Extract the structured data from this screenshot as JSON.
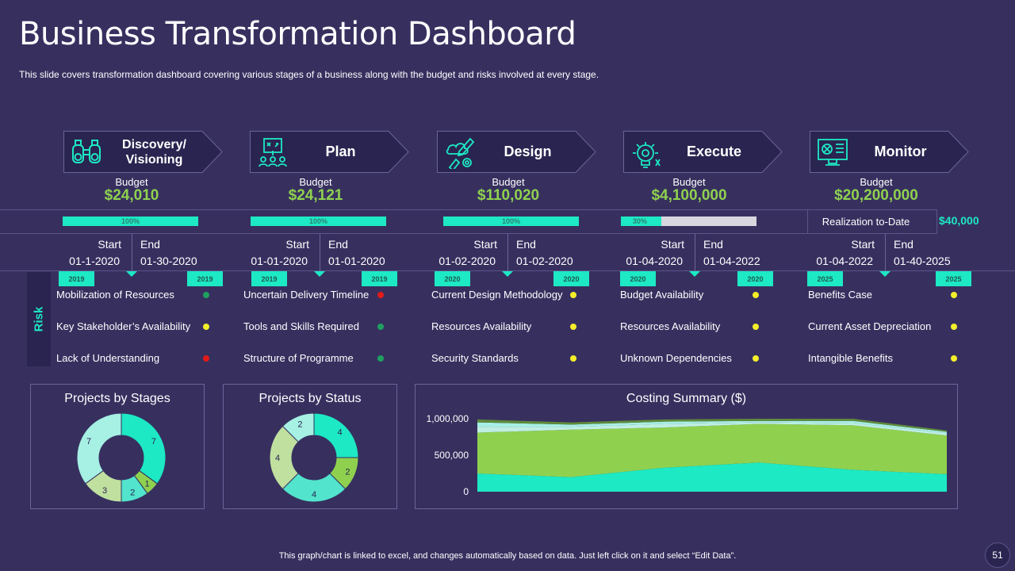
{
  "title": "Business Transformation Dashboard",
  "subtitle": "This slide covers transformation dashboard covering various  stages of a business along with the budget and risks involved  at every  stage.",
  "colors": {
    "background": "#37305f",
    "panel": "#2a2450",
    "accent_teal": "#1de9c4",
    "accent_green": "#8fd14f",
    "status_green": "#1fa060",
    "status_red": "#e21a1a",
    "status_yellow": "#f4ee2a"
  },
  "stages": [
    {
      "name": "Discovery/\nVisioning",
      "icon": "binoculars-icon",
      "budget_label": "Budget",
      "budget": "$24,010",
      "progress": 100,
      "progress_label": "100%",
      "start_label": "Start",
      "end_label": "End",
      "start": "01-1-2020",
      "end": "01-30-2020",
      "start_year": "2019",
      "end_year": "2019",
      "risks": [
        {
          "text": "Mobilization of Resources",
          "status": "green"
        },
        {
          "text": "Key Stakeholder’s Availability",
          "status": "yellow"
        },
        {
          "text": "Lack of Understanding",
          "status": "red"
        }
      ]
    },
    {
      "name": "Plan",
      "icon": "team-plan-icon",
      "budget_label": "Budget",
      "budget": "$24,121",
      "progress": 100,
      "progress_label": "100%",
      "start_label": "Start",
      "end_label": "End",
      "start": "01-01-2020",
      "end": "01-01-2020",
      "start_year": "2019",
      "end_year": "2019",
      "risks": [
        {
          "text": "Uncertain Delivery Timeline",
          "status": "red"
        },
        {
          "text": "Tools and Skills Required",
          "status": "green"
        },
        {
          "text": "Structure of Programme",
          "status": "green"
        }
      ]
    },
    {
      "name": "Design",
      "icon": "design-tools-icon",
      "budget_label": "Budget",
      "budget": "$110,020",
      "progress": 100,
      "progress_label": "100%",
      "start_label": "Start",
      "end_label": "End",
      "start": "01-02-2020",
      "end": "01-02-2020",
      "start_year": "2020",
      "end_year": "2020",
      "risks": [
        {
          "text": "Current Design Methodology",
          "status": "yellow"
        },
        {
          "text": "Resources Availability",
          "status": "yellow"
        },
        {
          "text": "Security Standards",
          "status": "yellow"
        }
      ]
    },
    {
      "name": "Execute",
      "icon": "lightbulb-gear-icon",
      "budget_label": "Budget",
      "budget": "$4,100,000",
      "progress": 30,
      "progress_label": "30%",
      "start_label": "Start",
      "end_label": "End",
      "start": "01-04-2020",
      "end": "01-04-2022",
      "start_year": "2020",
      "end_year": "2020",
      "risks": [
        {
          "text": "Budget Availability",
          "status": "yellow"
        },
        {
          "text": "Resources Availability",
          "status": "yellow"
        },
        {
          "text": "Unknown Dependencies",
          "status": "yellow"
        }
      ]
    },
    {
      "name": "Monitor",
      "icon": "monitor-icon",
      "budget_label": "Budget",
      "budget": "$20,200,000",
      "progress": null,
      "progress_label": "",
      "start_label": "Start",
      "end_label": "End",
      "start": "01-04-2022",
      "end": "01-40-2025",
      "start_year": "2025",
      "end_year": "2025",
      "risks": [
        {
          "text": "Benefits Case",
          "status": "yellow"
        },
        {
          "text": "Current  Asset Depreciation",
          "status": "yellow"
        },
        {
          "text": "Intangible Benefits",
          "status": "yellow"
        }
      ]
    }
  ],
  "realization": {
    "label": "Realization to-Date",
    "value": "$40,000"
  },
  "risk_label": "Risk",
  "panels": {
    "stages_title": "Projects by Stages",
    "status_title": "Projects by Status",
    "costing_title": "Costing Summary ($)"
  },
  "chart_data": [
    {
      "type": "pie",
      "title": "Projects by Stages",
      "donut": true,
      "values": [
        7,
        1,
        2,
        3,
        7
      ],
      "colors": [
        "#1de9c4",
        "#8fd14f",
        "#52e4cc",
        "#c0e0a0",
        "#a6f0e4"
      ]
    },
    {
      "type": "pie",
      "title": "Projects by Status",
      "donut": true,
      "values": [
        4,
        2,
        4,
        4,
        2
      ],
      "colors": [
        "#1de9c4",
        "#8fd14f",
        "#52e4cc",
        "#c0e0a0",
        "#a6f0e4"
      ]
    },
    {
      "type": "area",
      "title": "Costing Summary ($)",
      "stacked": true,
      "x": [
        1,
        2,
        3,
        4,
        5,
        6
      ],
      "series": [
        {
          "values": [
            250000,
            200000,
            330000,
            400000,
            300000,
            240000
          ],
          "color": "#1de9c4"
        },
        {
          "values": [
            560000,
            650000,
            550000,
            530000,
            610000,
            530000
          ],
          "color": "#8fd14f"
        },
        {
          "values": [
            80000,
            40000,
            50000,
            20000,
            30000,
            30000
          ],
          "color": "#bfeee2"
        },
        {
          "values": [
            60000,
            30000,
            30000,
            20000,
            30000,
            20000
          ],
          "color": "#a6f0e4"
        },
        {
          "values": [
            40000,
            30000,
            30000,
            30000,
            30000,
            20000
          ],
          "color": "#5f8a3a"
        }
      ],
      "yticks": [
        "0",
        "500,000",
        "1,000,000"
      ],
      "ylim": [
        0,
        1000000
      ],
      "grid": false
    }
  ],
  "footer": "This graph/chart is linked to excel,  and changes automatically based on data. Just left click on it and select “Edit Data”.",
  "page_number": "51"
}
